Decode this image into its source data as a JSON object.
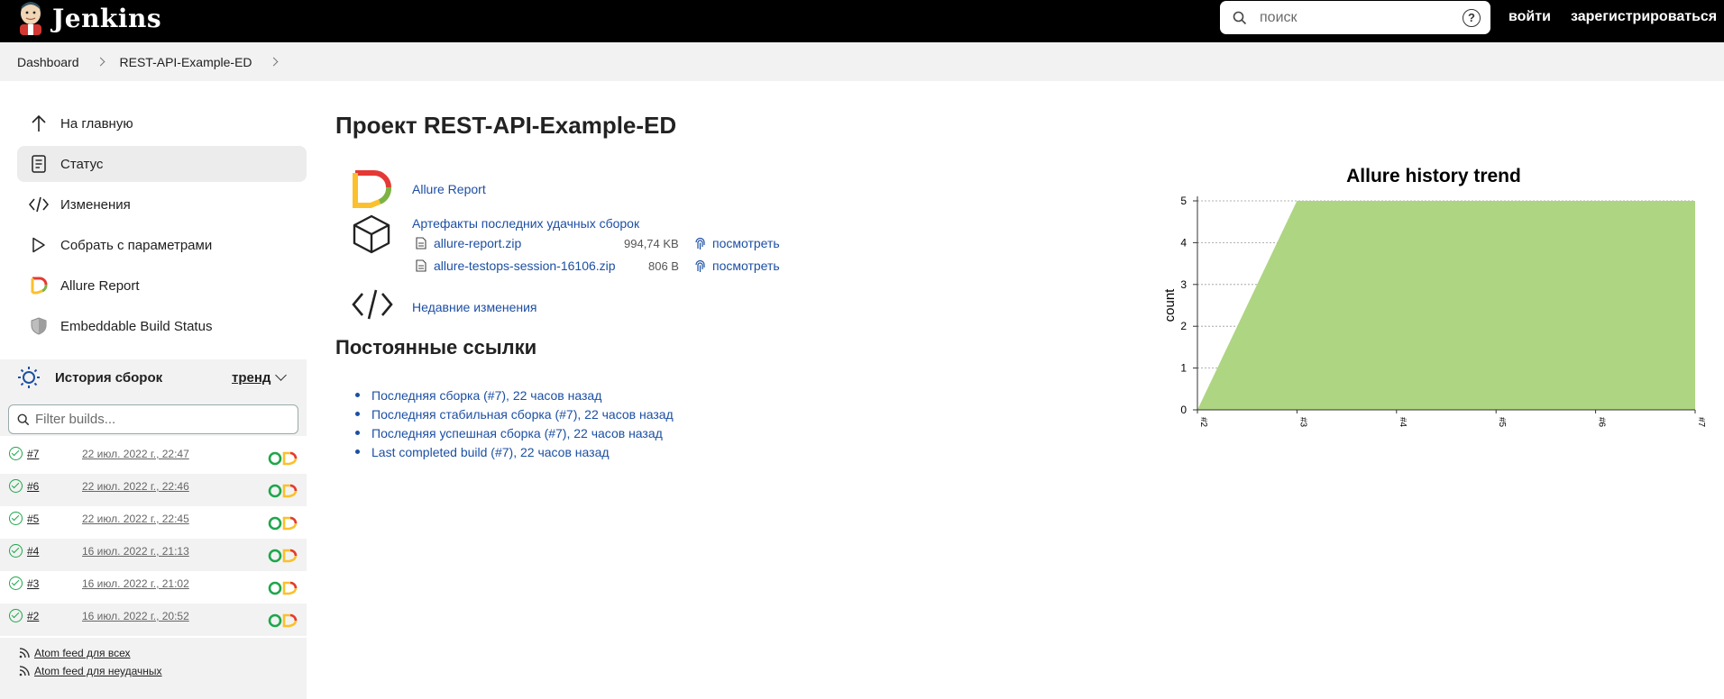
{
  "header": {
    "app_name": "Jenkins",
    "search_placeholder": "поиск",
    "help_symbol": "?",
    "login": "войти",
    "register": "зарегистрироваться"
  },
  "breadcrumbs": [
    "Dashboard",
    "REST-API-Example-ED"
  ],
  "sidebar": {
    "items": [
      {
        "label": "На главную",
        "icon": "arrow-up-icon"
      },
      {
        "label": "Статус",
        "icon": "document-icon",
        "active": true
      },
      {
        "label": "Изменения",
        "icon": "code-icon"
      },
      {
        "label": "Собрать с параметрами",
        "icon": "play-icon"
      },
      {
        "label": "Allure Report",
        "icon": "allure-logo-icon"
      },
      {
        "label": "Embeddable Build Status",
        "icon": "shield-icon"
      }
    ]
  },
  "history": {
    "title": "История сборок",
    "trend": "тренд",
    "filter_placeholder": "Filter builds...",
    "builds": [
      {
        "num": "#7",
        "date": "22 июл. 2022 г., 22:47"
      },
      {
        "num": "#6",
        "date": "22 июл. 2022 г., 22:46"
      },
      {
        "num": "#5",
        "date": "22 июл. 2022 г., 22:45"
      },
      {
        "num": "#4",
        "date": "16 июл. 2022 г., 21:13"
      },
      {
        "num": "#3",
        "date": "16 июл. 2022 г., 21:02"
      },
      {
        "num": "#2",
        "date": "16 июл. 2022 г., 20:52"
      }
    ],
    "feeds": [
      "Atom feed для всех",
      "Atom feed для неудачных"
    ]
  },
  "main": {
    "title": "Проект REST-API-Example-ED",
    "allure_link": "Allure Report",
    "artifacts_title": "Артефакты последних удачных сборок",
    "artifacts": [
      {
        "name": "allure-report.zip",
        "size": "994,74 KB",
        "view": "посмотреть"
      },
      {
        "name": "allure-testops-session-16106.zip",
        "size": "806 B",
        "view": "посмотреть"
      }
    ],
    "recent_changes": "Недавние изменения",
    "permalinks_title": "Постоянные ссылки",
    "permalinks": [
      "Последняя сборка (#7), 22 часов назад",
      "Последняя стабильная сборка (#7), 22 часов назад",
      "Последняя успешная сборка (#7), 22 часов назад",
      "Last completed build (#7), 22 часов назад"
    ]
  },
  "colors": {
    "header_bg": "#000000",
    "link": "#1c4fa3",
    "success": "#1ea64b",
    "chart_fill": "#aed581"
  },
  "chart_data": {
    "type": "area",
    "title": "Allure history trend",
    "ylabel": "count",
    "xlabel": "",
    "categories": [
      "#2",
      "#3",
      "#4",
      "#5",
      "#6",
      "#7"
    ],
    "series": [
      {
        "values": [
          0,
          5,
          5,
          5,
          5,
          5
        ]
      }
    ],
    "ylim": [
      0,
      5
    ],
    "yticks": [
      0,
      1,
      2,
      3,
      4,
      5
    ],
    "grid": true
  }
}
